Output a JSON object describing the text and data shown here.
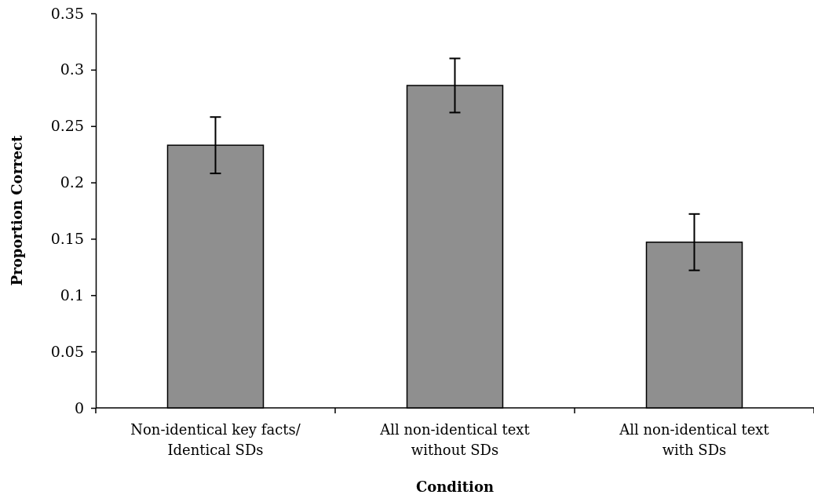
{
  "chart_data": {
    "type": "bar",
    "xlabel": "Condition",
    "ylabel": "Proportion Correct",
    "categories": [
      "Non-identical key facts/ Identical SDs",
      "All non-identical text without SDs",
      "All non-identical text with SDs"
    ],
    "values": [
      0.233,
      0.286,
      0.147
    ],
    "errors": [
      0.025,
      0.024,
      0.025
    ],
    "color": "#8f8f8f",
    "ylim": [
      0,
      0.35
    ],
    "yticks": [
      0,
      0.05,
      0.1,
      0.15,
      0.2,
      0.25,
      0.3,
      0.35
    ],
    "grid": false
  }
}
